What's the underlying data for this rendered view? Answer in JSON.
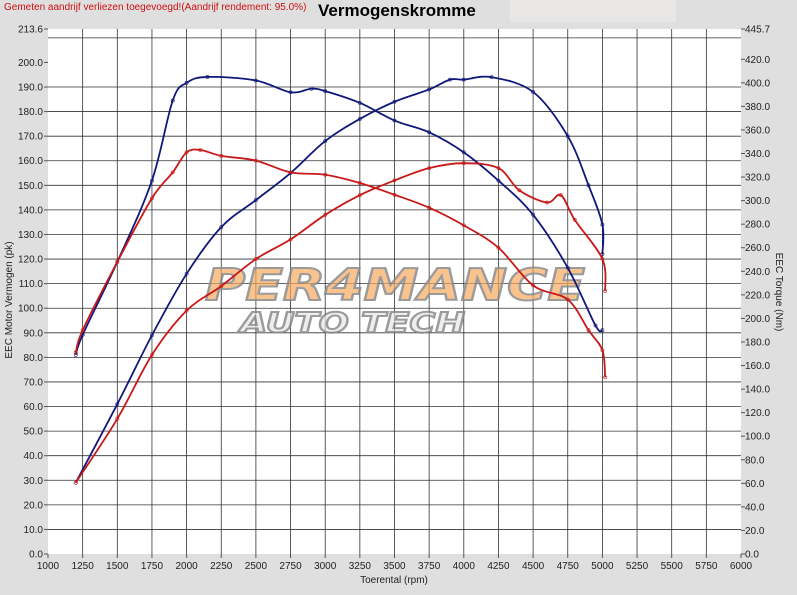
{
  "header": {
    "note": "Gemeten aandrijf verliezen toegevoegd!(Aandrijf rendement: 95.0%)",
    "title": "Vermogenskromme"
  },
  "logo": {
    "line1": "PER4MANCE",
    "line2": "AUTO TECH"
  },
  "colors": {
    "background": "#dfdfdf",
    "plot": "#ffffff",
    "grid": "#333333",
    "blue": "#10187a",
    "red": "#c81818",
    "note": "#d01010"
  },
  "chart_data": {
    "type": "line",
    "title": "Vermogenskromme",
    "xlabel": "Toerental (rpm)",
    "ylabel": "EEC Motor Vermogen (pk)",
    "y2label": "EEC Torque (Nm)",
    "xlim": [
      1000,
      6000
    ],
    "ylim": [
      0,
      213.6
    ],
    "y2lim": [
      0,
      445.7
    ],
    "grid": true,
    "xticks": [
      "1000",
      "1250",
      "1500",
      "1750",
      "2000",
      "2250",
      "2500",
      "2750",
      "3000",
      "3250",
      "3500",
      "3750",
      "4000",
      "4250",
      "4500",
      "4750",
      "5000",
      "5250",
      "5500",
      "5750",
      "6000"
    ],
    "yticks": [
      "0.0",
      "10.0",
      "20.0",
      "30.0",
      "40.0",
      "50.0",
      "60.0",
      "70.0",
      "80.0",
      "90.0",
      "100.0",
      "110.0",
      "120.0",
      "130.0",
      "140.0",
      "150.0",
      "160.0",
      "170.0",
      "180.0",
      "190.0",
      "200.0",
      "213.6"
    ],
    "y2ticks": [
      "0.0",
      "20.0",
      "40.0",
      "60.0",
      "80.0",
      "100.0",
      "120.0",
      "140.0",
      "160.0",
      "180.0",
      "200.0",
      "220.0",
      "240.0",
      "260.0",
      "280.0",
      "300.0",
      "320.0",
      "340.0",
      "360.0",
      "380.0",
      "400.0",
      "420.0",
      "445.7"
    ],
    "series": [
      {
        "axis": "left",
        "color": "#10187a",
        "x": [
          1200,
          1500,
          1750,
          2000,
          2250,
          2500,
          2750,
          3000,
          3250,
          3500,
          3750,
          3900,
          4000,
          4200,
          4500,
          4750,
          4900,
          5000,
          5000
        ],
        "y": [
          29,
          61,
          89,
          114,
          133,
          144,
          155,
          168,
          177,
          184,
          189,
          193,
          193,
          194,
          188,
          170,
          150,
          134,
          122
        ]
      },
      {
        "axis": "right",
        "color": "#10187a",
        "x": [
          1200,
          1250,
          1500,
          1750,
          1900,
          2000,
          2150,
          2500,
          2750,
          2900,
          3000,
          3250,
          3500,
          3750,
          4000,
          4250,
          4500,
          4750,
          4950,
          5000
        ],
        "y": [
          169,
          186,
          248,
          317,
          385,
          400,
          405,
          402,
          392,
          395,
          393,
          383,
          368,
          358,
          341,
          317,
          288,
          243,
          194,
          190
        ]
      },
      {
        "axis": "left",
        "color": "#c81818",
        "x": [
          1200,
          1500,
          1750,
          2000,
          2250,
          2500,
          2750,
          3000,
          3250,
          3500,
          3750,
          4000,
          4250,
          4400,
          4600,
          4700,
          4800,
          5000,
          5020
        ],
        "y": [
          29,
          55,
          81,
          99,
          109,
          120,
          128,
          138,
          146,
          152,
          157,
          159,
          157,
          148,
          143,
          146,
          136,
          120,
          107
        ]
      },
      {
        "axis": "right",
        "color": "#c81818",
        "x": [
          1200,
          1250,
          1500,
          1750,
          1900,
          2000,
          2100,
          2250,
          2500,
          2750,
          3000,
          3250,
          3500,
          3750,
          4000,
          4250,
          4500,
          4750,
          4900,
          5000,
          5020
        ],
        "y": [
          171,
          190,
          248,
          302,
          324,
          341,
          343,
          338,
          334,
          324,
          322,
          315,
          305,
          294,
          279,
          260,
          228,
          216,
          190,
          173,
          150
        ]
      }
    ]
  }
}
